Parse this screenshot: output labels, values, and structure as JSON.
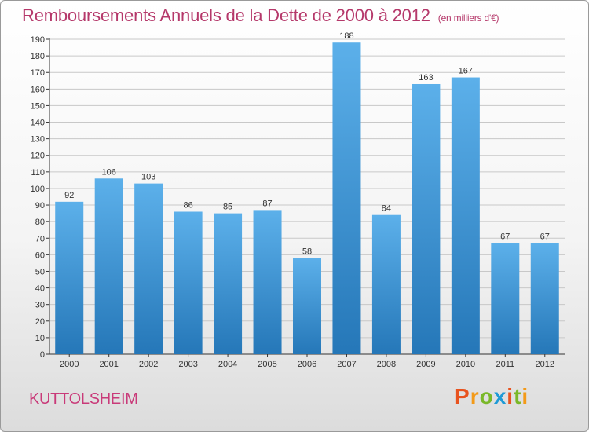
{
  "header": {
    "title": "Remboursements Annuels de la Dette de 2000 à 2012",
    "unit": "(en milliers d'€)"
  },
  "footer": {
    "commune": "KUTTOLSHEIM",
    "logo": "Proxiti"
  },
  "colors": {
    "bar_top": "#5cb0ea",
    "bar_bottom": "#2577b8",
    "title": "#b5386a",
    "commune": "#c93a79",
    "logo_letters": [
      "#e8531f",
      "#f39a18",
      "#7ab829",
      "#1e9ad6",
      "#e8531f",
      "#7ab829",
      "#f39a18"
    ]
  },
  "chart_data": {
    "type": "bar",
    "categories": [
      "2000",
      "2001",
      "2002",
      "2003",
      "2004",
      "2005",
      "2006",
      "2007",
      "2008",
      "2009",
      "2010",
      "2011",
      "2012"
    ],
    "values": [
      92,
      106,
      103,
      86,
      85,
      87,
      58,
      188,
      84,
      163,
      167,
      67,
      67
    ],
    "ylim": [
      0,
      190
    ],
    "ytick_step": 10,
    "grid": true,
    "legend": "none"
  }
}
